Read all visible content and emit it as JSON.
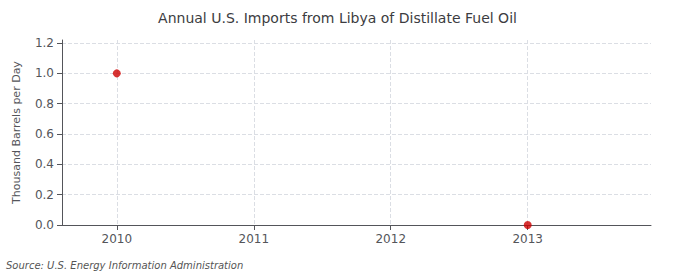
{
  "chart_data": {
    "type": "scatter",
    "title": "Annual U.S. Imports from Libya of Distillate Fuel Oil",
    "ylabel": "Thousand Barrels per Day",
    "source": "Source: U.S. Energy Information Administration",
    "x": [
      2010,
      2013
    ],
    "values": [
      1.0,
      0.0
    ],
    "color": "#cc0000",
    "marker": "circle",
    "xlim": [
      2009.6,
      2013.9
    ],
    "xticks": [
      2010,
      2011,
      2012,
      2013
    ],
    "ylim": [
      0.0,
      1.22
    ],
    "yticks": [
      {
        "value": 0.0,
        "label": "0.0"
      },
      0.2,
      0.4,
      0.6,
      0.8,
      {
        "value": 1.0,
        "label": "1.0"
      },
      1.2
    ],
    "grid": true
  }
}
